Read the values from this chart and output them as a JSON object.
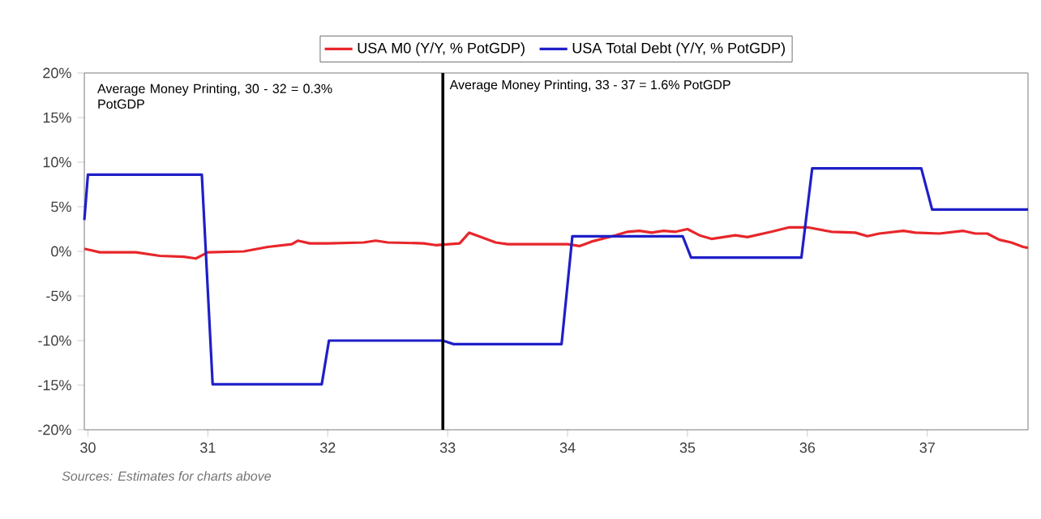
{
  "chart_data": {
    "type": "line",
    "xlim": [
      29.97,
      37.84
    ],
    "ylim": [
      -20,
      20
    ],
    "xticks": [
      30,
      31,
      32,
      33,
      34,
      35,
      36,
      37
    ],
    "yticks": [
      {
        "value": -20,
        "label": "-20%"
      },
      {
        "value": -15,
        "label": "-15%"
      },
      {
        "value": -10,
        "label": "-10%"
      },
      {
        "value": -5,
        "label": "-5%"
      },
      {
        "value": 0,
        "label": "0%"
      },
      {
        "value": 5,
        "label": "5%"
      },
      {
        "value": 10,
        "label": "10%"
      },
      {
        "value": 15,
        "label": "15%"
      },
      {
        "value": 20,
        "label": "20%"
      }
    ],
    "grid": false,
    "legend": "top",
    "marker": "none",
    "line_style": "solid",
    "ref_lines": [
      {
        "axis": "x",
        "value": 32.96,
        "color": "#000000"
      }
    ],
    "series": [
      {
        "name": "USA M0 (Y/Y, % PotGDP)",
        "color": "#e8262a",
        "x": [
          29.97,
          30.0,
          30.1,
          30.4,
          30.6,
          30.8,
          30.9,
          31.0,
          31.3,
          31.5,
          31.7,
          31.75,
          31.85,
          32.0,
          32.3,
          32.4,
          32.5,
          32.8,
          32.9,
          33.0,
          33.1,
          33.18,
          33.3,
          33.4,
          33.5,
          33.8,
          34.0,
          34.1,
          34.2,
          34.4,
          34.5,
          34.6,
          34.7,
          34.8,
          34.9,
          35.0,
          35.1,
          35.2,
          35.4,
          35.5,
          35.7,
          35.85,
          36.0,
          36.2,
          36.4,
          36.5,
          36.6,
          36.8,
          36.9,
          37.1,
          37.3,
          37.4,
          37.5,
          37.6,
          37.7,
          37.8,
          37.84
        ],
        "values": [
          0.3,
          0.2,
          -0.1,
          -0.1,
          -0.5,
          -0.6,
          -0.8,
          -0.1,
          0,
          0.5,
          0.8,
          1.2,
          0.9,
          0.9,
          1.0,
          1.2,
          1.0,
          0.9,
          0.7,
          0.8,
          0.9,
          2.1,
          1.5,
          1.0,
          0.8,
          0.8,
          0.8,
          0.6,
          1.1,
          1.8,
          2.2,
          2.3,
          2.1,
          2.3,
          2.2,
          2.5,
          1.8,
          1.4,
          1.8,
          1.6,
          2.2,
          2.7,
          2.7,
          2.2,
          2.1,
          1.7,
          2.0,
          2.3,
          2.1,
          2.0,
          2.3,
          2.0,
          2.0,
          1.3,
          1.0,
          0.5,
          0.4
        ]
      },
      {
        "name": "USA Total Debt (Y/Y, % PotGDP)",
        "color": "#1f1fc8",
        "x": [
          29.97,
          30.0,
          30.95,
          31.04,
          31.95,
          32.01,
          32.96,
          33.05,
          33.95,
          34.04,
          34.96,
          35.03,
          35.95,
          36.04,
          36.95,
          37.04,
          37.84
        ],
        "values": [
          3.5,
          8.6,
          8.6,
          -14.9,
          -14.9,
          -10.0,
          -10.0,
          -10.4,
          -10.4,
          1.7,
          1.7,
          -0.7,
          -0.7,
          9.3,
          9.3,
          4.7,
          4.7
        ]
      }
    ],
    "annotations": [
      "Average Money Printing,  30 - 32 = 0.3% PotGDP",
      "Average Money Printing, 33 - 37 = 1.6% PotGDP",
      "Sources: Estimates for charts above"
    ]
  }
}
